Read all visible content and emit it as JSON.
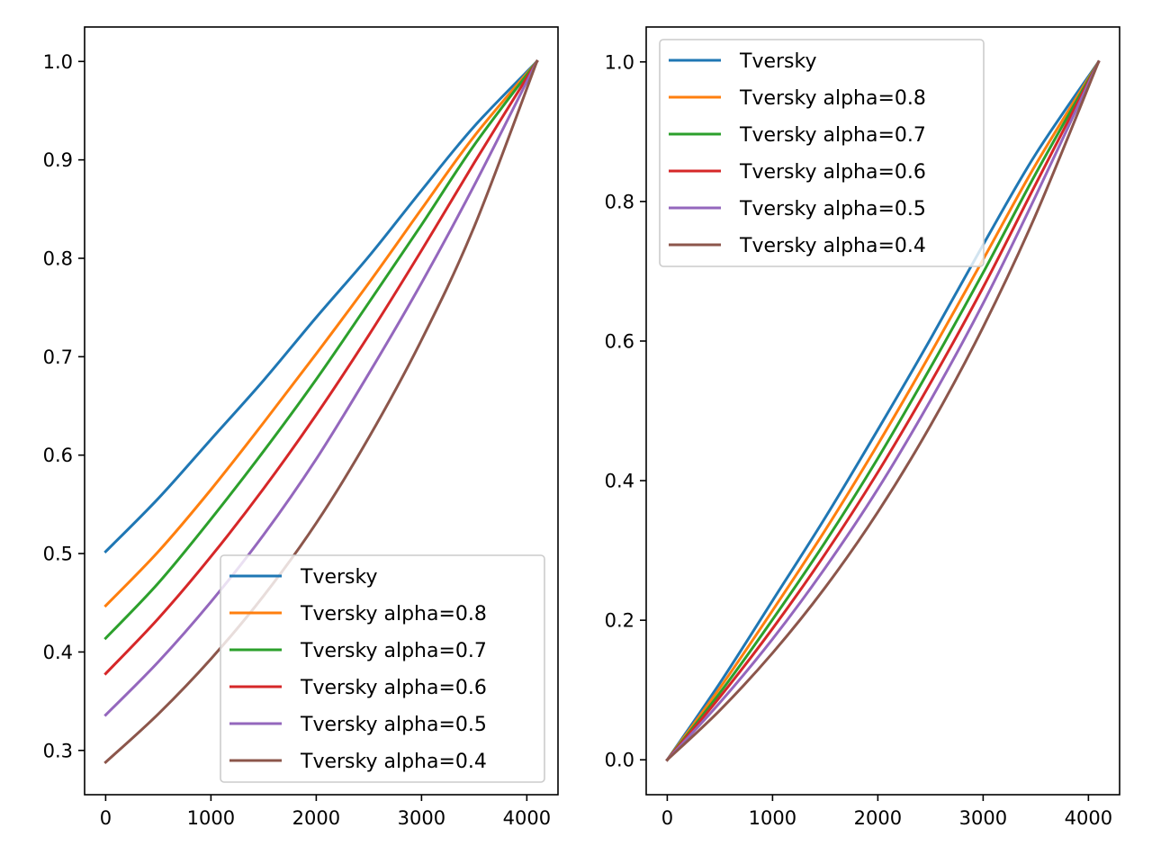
{
  "colors": {
    "tversky": "#1f77b4",
    "alpha_0_8": "#ff7f0e",
    "alpha_0_7": "#2ca02c",
    "alpha_0_6": "#d62728",
    "alpha_0_5": "#9467bd",
    "alpha_0_4": "#8c564b"
  },
  "chart_data": [
    {
      "type": "line",
      "title": "",
      "xlabel": "",
      "ylabel": "",
      "xlim": [
        -200,
        4296
      ],
      "ylim": [
        0.255,
        1.035
      ],
      "xticks": [
        0,
        1000,
        2000,
        3000,
        4000
      ],
      "xtick_labels": [
        "0",
        "1000",
        "2000",
        "3000",
        "4000"
      ],
      "yticks": [
        0.3,
        0.4,
        0.5,
        0.6,
        0.7,
        0.8,
        0.9,
        1.0
      ],
      "ytick_labels": [
        "0.3",
        "0.4",
        "0.5",
        "0.6",
        "0.7",
        "0.8",
        "0.9",
        "1.0"
      ],
      "legend_position": "lower-right",
      "grid": false,
      "series": [
        {
          "name": "Tversky",
          "color": "#1f77b4",
          "points": [
            [
              0,
              0.502
            ],
            [
              500,
              0.556
            ],
            [
              1000,
              0.616
            ],
            [
              1500,
              0.676
            ],
            [
              2000,
              0.74
            ],
            [
              2500,
              0.802
            ],
            [
              3000,
              0.869
            ],
            [
              3500,
              0.934
            ],
            [
              4096,
              1.0
            ]
          ]
        },
        {
          "name": "Tversky alpha=0.8",
          "color": "#ff7f0e",
          "points": [
            [
              0,
              0.447
            ],
            [
              500,
              0.502
            ],
            [
              1000,
              0.565
            ],
            [
              1500,
              0.633
            ],
            [
              2000,
              0.703
            ],
            [
              2500,
              0.775
            ],
            [
              3000,
              0.85
            ],
            [
              3500,
              0.924
            ],
            [
              4096,
              1.0
            ]
          ]
        },
        {
          "name": "Tversky alpha=0.7",
          "color": "#2ca02c",
          "points": [
            [
              0,
              0.414
            ],
            [
              500,
              0.47
            ],
            [
              1000,
              0.535
            ],
            [
              1500,
              0.604
            ],
            [
              2000,
              0.677
            ],
            [
              2500,
              0.755
            ],
            [
              3000,
              0.834
            ],
            [
              3500,
              0.915
            ],
            [
              4096,
              1.0
            ]
          ]
        },
        {
          "name": "Tversky alpha=0.6",
          "color": "#d62728",
          "points": [
            [
              0,
              0.378
            ],
            [
              500,
              0.434
            ],
            [
              1000,
              0.497
            ],
            [
              1500,
              0.566
            ],
            [
              2000,
              0.641
            ],
            [
              2500,
              0.722
            ],
            [
              3000,
              0.808
            ],
            [
              3500,
              0.897
            ],
            [
              4096,
              1.0
            ]
          ]
        },
        {
          "name": "Tversky alpha=0.5",
          "color": "#9467bd",
          "points": [
            [
              0,
              0.336
            ],
            [
              500,
              0.39
            ],
            [
              1000,
              0.451
            ],
            [
              1500,
              0.519
            ],
            [
              2000,
              0.596
            ],
            [
              2500,
              0.683
            ],
            [
              3000,
              0.775
            ],
            [
              3500,
              0.874
            ],
            [
              4096,
              1.0
            ]
          ]
        },
        {
          "name": "Tversky alpha=0.4",
          "color": "#8c564b",
          "points": [
            [
              0,
              0.288
            ],
            [
              500,
              0.337
            ],
            [
              1000,
              0.393
            ],
            [
              1500,
              0.457
            ],
            [
              2000,
              0.531
            ],
            [
              2500,
              0.618
            ],
            [
              3000,
              0.717
            ],
            [
              3500,
              0.832
            ],
            [
              4096,
              1.0
            ]
          ]
        }
      ]
    },
    {
      "type": "line",
      "title": "",
      "xlabel": "",
      "ylabel": "",
      "xlim": [
        -200,
        4296
      ],
      "ylim": [
        -0.05,
        1.05
      ],
      "xticks": [
        0,
        1000,
        2000,
        3000,
        4000
      ],
      "xtick_labels": [
        "0",
        "1000",
        "2000",
        "3000",
        "4000"
      ],
      "yticks": [
        0.0,
        0.2,
        0.4,
        0.6,
        0.8,
        1.0
      ],
      "ytick_labels": [
        "0.0",
        "0.2",
        "0.4",
        "0.6",
        "0.8",
        "1.0"
      ],
      "legend_position": "upper-left",
      "grid": false,
      "series": [
        {
          "name": "Tversky",
          "color": "#1f77b4",
          "points": [
            [
              0,
              0.0
            ],
            [
              500,
              0.11
            ],
            [
              1000,
              0.228
            ],
            [
              1500,
              0.347
            ],
            [
              2000,
              0.473
            ],
            [
              2500,
              0.603
            ],
            [
              3000,
              0.738
            ],
            [
              3500,
              0.868
            ],
            [
              4096,
              1.0
            ]
          ]
        },
        {
          "name": "Tversky alpha=0.8",
          "color": "#ff7f0e",
          "points": [
            [
              0,
              0.0
            ],
            [
              500,
              0.103
            ],
            [
              1000,
              0.214
            ],
            [
              1500,
              0.329
            ],
            [
              2000,
              0.452
            ],
            [
              2500,
              0.582
            ],
            [
              3000,
              0.717
            ],
            [
              3500,
              0.853
            ],
            [
              4096,
              1.0
            ]
          ]
        },
        {
          "name": "Tversky alpha=0.7",
          "color": "#2ca02c",
          "points": [
            [
              0,
              0.0
            ],
            [
              500,
              0.096
            ],
            [
              1000,
              0.201
            ],
            [
              1500,
              0.312
            ],
            [
              2000,
              0.432
            ],
            [
              2500,
              0.562
            ],
            [
              3000,
              0.698
            ],
            [
              3500,
              0.84
            ],
            [
              4096,
              1.0
            ]
          ]
        },
        {
          "name": "Tversky alpha=0.6",
          "color": "#d62728",
          "points": [
            [
              0,
              0.0
            ],
            [
              500,
              0.09
            ],
            [
              1000,
              0.188
            ],
            [
              1500,
              0.295
            ],
            [
              2000,
              0.412
            ],
            [
              2500,
              0.54
            ],
            [
              3000,
              0.677
            ],
            [
              3500,
              0.825
            ],
            [
              4096,
              1.0
            ]
          ]
        },
        {
          "name": "Tversky alpha=0.5",
          "color": "#9467bd",
          "points": [
            [
              0,
              0.0
            ],
            [
              500,
              0.082
            ],
            [
              1000,
              0.173
            ],
            [
              1500,
              0.275
            ],
            [
              2000,
              0.388
            ],
            [
              2500,
              0.515
            ],
            [
              3000,
              0.654
            ],
            [
              3500,
              0.808
            ],
            [
              4096,
              1.0
            ]
          ]
        },
        {
          "name": "Tversky alpha=0.4",
          "color": "#8c564b",
          "points": [
            [
              0,
              0.0
            ],
            [
              500,
              0.071
            ],
            [
              1000,
              0.153
            ],
            [
              1500,
              0.247
            ],
            [
              2000,
              0.355
            ],
            [
              2500,
              0.479
            ],
            [
              3000,
              0.62
            ],
            [
              3500,
              0.781
            ],
            [
              4096,
              1.0
            ]
          ]
        }
      ]
    }
  ]
}
